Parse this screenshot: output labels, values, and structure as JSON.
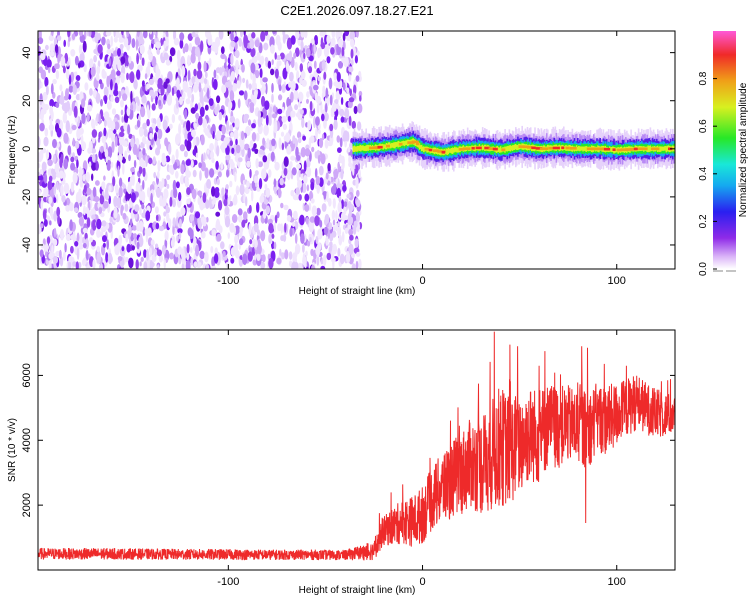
{
  "title": "C2E1.2026.097.18.27.E21",
  "colors": {
    "noise_purple": "#7a1ff0",
    "noise_light": "#d8c2fa",
    "snr_line": "#ee2a2a",
    "axis": "#000000"
  },
  "chart_data": [
    {
      "type": "heatmap",
      "name": "spectrogram",
      "xlabel": "Height of straight line (km)",
      "ylabel": "Frequency (Hz)",
      "xlim": [
        -198,
        130
      ],
      "ylim": [
        -50,
        49
      ],
      "xticks": [
        -100,
        0,
        100
      ],
      "xtick_labels": [
        "-100",
        "0",
        "100"
      ],
      "yticks": [
        -40,
        -20,
        0,
        20,
        40
      ],
      "ytick_labels": [
        "-40",
        "-20",
        "0",
        "20",
        "40"
      ],
      "noise_region_x": [
        -198,
        -36
      ],
      "signal_region_x": [
        -36,
        130
      ],
      "signal_center_freq": [
        [
          -36,
          0
        ],
        [
          -25,
          0.5
        ],
        [
          -15,
          1.5
        ],
        [
          -5,
          3
        ],
        [
          0,
          0
        ],
        [
          10,
          -1.5
        ],
        [
          20,
          0
        ],
        [
          30,
          0.5
        ],
        [
          40,
          -0.5
        ],
        [
          50,
          1
        ],
        [
          60,
          0
        ],
        [
          70,
          0.5
        ],
        [
          80,
          0
        ],
        [
          90,
          0
        ],
        [
          100,
          -0.5
        ],
        [
          110,
          0
        ],
        [
          120,
          0
        ],
        [
          130,
          0
        ]
      ],
      "colorbar": {
        "label": "Normalized spectral amplitude",
        "range": [
          0,
          1
        ],
        "ticks": [
          0.0,
          0.2,
          0.4,
          0.6,
          0.8
        ],
        "tick_labels": [
          "0.0",
          "0.2",
          "0.4",
          "0.6",
          "0.8"
        ],
        "colormap": [
          "#ffffff",
          "#dcb8f8",
          "#8f2be8",
          "#2a1ff0",
          "#15a8f0",
          "#19e8d8",
          "#27e827",
          "#d8f020",
          "#f0a018",
          "#f02a28",
          "#ff58d8"
        ]
      }
    },
    {
      "type": "line",
      "name": "snr",
      "xlabel": "Height of straight line (km)",
      "ylabel": "SNR (10 * v/v)",
      "xlim": [
        -198,
        130
      ],
      "ylim": [
        0,
        7400
      ],
      "xticks": [
        -100,
        0,
        100
      ],
      "xtick_labels": [
        "-100",
        "0",
        "100"
      ],
      "yticks": [
        2000,
        4000,
        6000
      ],
      "ytick_labels": [
        "2000",
        "4000",
        "6000"
      ],
      "series": [
        {
          "name": "SNR",
          "x": [
            -198,
            -180,
            -160,
            -140,
            -120,
            -100,
            -80,
            -60,
            -40,
            -25,
            -20,
            -15,
            -10,
            -5,
            0,
            5,
            10,
            15,
            20,
            25,
            30,
            35,
            40,
            45,
            50,
            55,
            60,
            65,
            70,
            75,
            80,
            85,
            90,
            95,
            100,
            105,
            110,
            115,
            120,
            125,
            130
          ],
          "mean": [
            500,
            500,
            500,
            490,
            480,
            480,
            470,
            470,
            460,
            600,
            1200,
            1350,
            1500,
            1500,
            1700,
            2200,
            2500,
            2800,
            3000,
            3300,
            3200,
            3500,
            3800,
            3700,
            3900,
            4200,
            4100,
            4500,
            4400,
            4500,
            4400,
            4300,
            4700,
            4600,
            4800,
            5000,
            5200,
            5000,
            4800,
            4800,
            4800
          ],
          "spread": [
            180,
            180,
            180,
            170,
            170,
            170,
            160,
            160,
            160,
            300,
            450,
            600,
            700,
            800,
            900,
            1000,
            1100,
            1200,
            1300,
            1400,
            1500,
            1700,
            1900,
            1700,
            1600,
            1500,
            1500,
            1300,
            1300,
            1200,
            1200,
            1200,
            1100,
            1100,
            1000,
            900,
            900,
            800,
            800,
            700,
            600
          ],
          "peaks": [
            [
              37,
              7350
            ],
            [
              45,
              6950
            ],
            [
              49,
              6900
            ],
            [
              63,
              6750
            ],
            [
              82,
              6900
            ],
            [
              85,
              6850
            ],
            [
              60,
              6300
            ],
            [
              105,
              6300
            ],
            [
              84,
              1450
            ]
          ]
        }
      ]
    }
  ]
}
